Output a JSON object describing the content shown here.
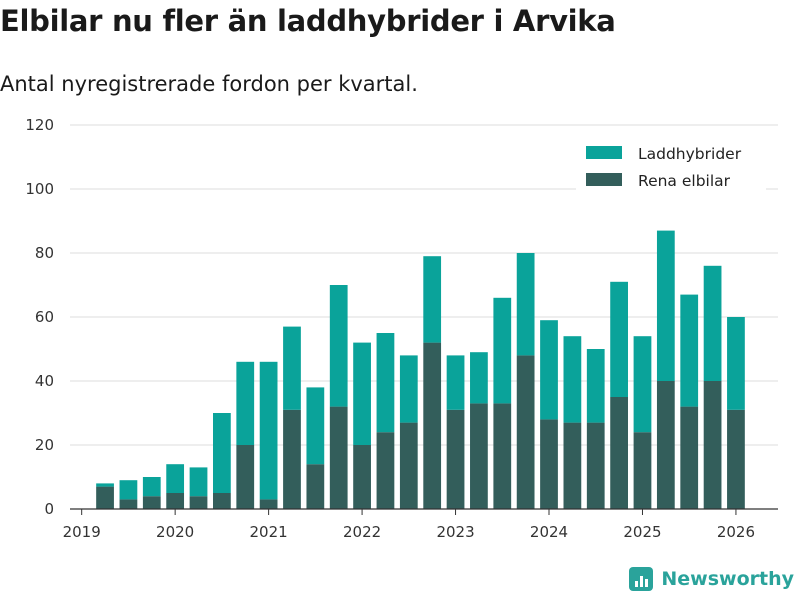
{
  "chart_data": {
    "type": "bar",
    "stacked": true,
    "title": "Elbilar nu fler än laddhybrider i Arvika",
    "subtitle": "Antal nyregistrerade fordon per kvartal.",
    "ylim": [
      0,
      120
    ],
    "yticks": [
      0,
      20,
      40,
      60,
      80,
      100,
      120
    ],
    "xlim": [
      2018.875,
      2026.45
    ],
    "xticks": [
      {
        "value": 2019,
        "label": "2019"
      },
      {
        "value": 2020,
        "label": "2020"
      },
      {
        "value": 2021,
        "label": "2021"
      },
      {
        "value": 2022,
        "label": "2022"
      },
      {
        "value": 2023,
        "label": "2023"
      },
      {
        "value": 2024,
        "label": "2024"
      },
      {
        "value": 2025,
        "label": "2025"
      },
      {
        "value": 2026,
        "label": "2026"
      }
    ],
    "categories": [
      "2019Q2",
      "2019Q3",
      "2019Q4",
      "2020Q1",
      "2020Q2",
      "2020Q3",
      "2020Q4",
      "2021Q1",
      "2021Q2",
      "2021Q3",
      "2021Q4",
      "2022Q1",
      "2022Q2",
      "2022Q3",
      "2022Q4",
      "2023Q1",
      "2023Q2",
      "2023Q3",
      "2023Q4",
      "2024Q1",
      "2024Q2",
      "2024Q3",
      "2024Q4",
      "2025Q1",
      "2025Q2",
      "2025Q3",
      "2025Q4",
      "2026Q1"
    ],
    "x": [
      2019.25,
      2019.5,
      2019.75,
      2020.0,
      2020.25,
      2020.5,
      2020.75,
      2021.0,
      2021.25,
      2021.5,
      2021.75,
      2022.0,
      2022.25,
      2022.5,
      2022.75,
      2023.0,
      2023.25,
      2023.5,
      2023.75,
      2024.0,
      2024.25,
      2024.5,
      2024.75,
      2025.0,
      2025.25,
      2025.5,
      2025.75,
      2026.0
    ],
    "series": [
      {
        "name": "Rena elbilar",
        "color": "#335e5b",
        "values": [
          7,
          3,
          4,
          5,
          4,
          5,
          20,
          3,
          31,
          14,
          32,
          20,
          24,
          27,
          52,
          31,
          33,
          33,
          48,
          28,
          27,
          27,
          35,
          24,
          40,
          32,
          40,
          31
        ]
      },
      {
        "name": "Laddhybrider",
        "color": "#0aa39a",
        "values": [
          1,
          6,
          6,
          9,
          9,
          25,
          26,
          43,
          26,
          24,
          38,
          32,
          31,
          21,
          27,
          17,
          16,
          33,
          32,
          31,
          27,
          23,
          36,
          30,
          47,
          35,
          36,
          29
        ]
      }
    ],
    "legend": {
      "position": "top-right",
      "entries": [
        {
          "label": "Laddhybrider",
          "color": "#0aa39a"
        },
        {
          "label": "Rena elbilar",
          "color": "#335e5b"
        }
      ]
    },
    "grid": true
  },
  "brand": {
    "name": "Newsworthy",
    "color": "#2aa39b"
  }
}
